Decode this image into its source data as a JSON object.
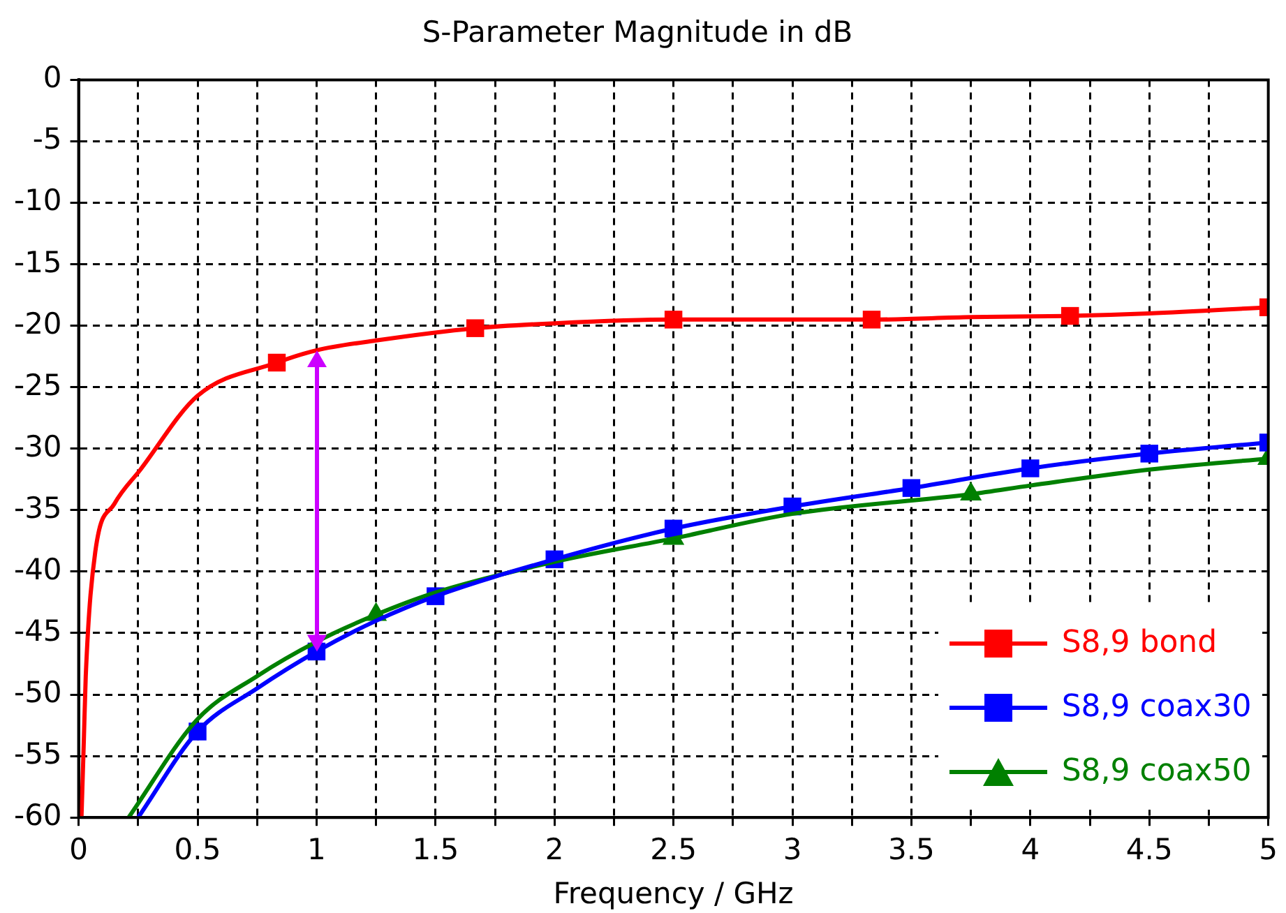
{
  "chart_data": {
    "type": "line",
    "title": "S-Parameter Magnitude in dB",
    "xlabel": "Frequency / GHz",
    "xlim": [
      0,
      5
    ],
    "ylim": [
      -60,
      0
    ],
    "xticks": [
      0,
      {
        "value": 0.25,
        "label": null
      },
      0.5,
      {
        "value": 0.75,
        "label": null
      },
      1,
      {
        "value": 1.25,
        "label": null
      },
      1.5,
      {
        "value": 1.75,
        "label": null
      },
      2,
      {
        "value": 2.25,
        "label": null
      },
      2.5,
      {
        "value": 2.75,
        "label": null
      },
      3,
      {
        "value": 3.25,
        "label": null
      },
      3.5,
      {
        "value": 3.75,
        "label": null
      },
      4,
      {
        "value": 4.25,
        "label": null
      },
      4.5,
      {
        "value": 4.75,
        "label": null
      },
      5
    ],
    "yticks": [
      -60,
      -55,
      -50,
      -45,
      -40,
      -35,
      -30,
      -25,
      -20,
      -15,
      -10,
      -5,
      0
    ],
    "grid": true,
    "legend": "bottom right",
    "line_style": "solid",
    "series": [
      {
        "type": "line",
        "color": "#ff0000",
        "marker": "none",
        "x": [
          0.012,
          0.022,
          0.03,
          0.07,
          0.15,
          0.26,
          0.5,
          0.833,
          1,
          1.25,
          1.667,
          2,
          2.5,
          3,
          3.333,
          3.75,
          4.167,
          4.5,
          5
        ],
        "values": [
          -60,
          -53.7,
          -48.5,
          -38.4,
          -34.5,
          -31.7,
          -25.7,
          -23,
          -22,
          -21.2,
          -20.2,
          -19.8,
          -19.5,
          -19.5,
          -19.5,
          -19.3,
          -19.2,
          -19,
          -18.5
        ]
      },
      {
        "type": "line",
        "color": "#0000ff",
        "marker": "none",
        "x": [
          0.25,
          0.5,
          0.75,
          1,
          1.25,
          1.5,
          2,
          2.5,
          3,
          3.5,
          4,
          4.5,
          5
        ],
        "values": [
          -60,
          -53,
          -49.5,
          -46.5,
          -44,
          -42,
          -39,
          -36.5,
          -34.7,
          -33.2,
          -31.6,
          -30.4,
          -29.5
        ]
      },
      {
        "type": "line",
        "color": "#008000",
        "marker": "none",
        "x": [
          0.21,
          0.5,
          0.75,
          1,
          1.25,
          1.5,
          2,
          2.5,
          3,
          3.75,
          4,
          4.5,
          5
        ],
        "values": [
          -60,
          -52,
          -48.5,
          -45.7,
          -43.5,
          -41.7,
          -39.2,
          -37.3,
          -35.3,
          -33.7,
          -33,
          -31.7,
          -30.8
        ]
      },
      {
        "type": "scatter",
        "name": "S8,9 bond",
        "color": "#ff0000",
        "marker": "square",
        "x": [
          0.833,
          1.667,
          2.5,
          3.333,
          4.167,
          5
        ],
        "values": [
          -23,
          -20.2,
          -19.5,
          -19.5,
          -19.2,
          -18.5
        ]
      },
      {
        "type": "scatter",
        "name": "S8,9 coax30",
        "color": "#0000ff",
        "marker": "square",
        "x": [
          0.5,
          1,
          1.5,
          2,
          2.5,
          3,
          3.5,
          4,
          4.5,
          5
        ],
        "values": [
          -53,
          -46.5,
          -42,
          -39,
          -36.5,
          -34.7,
          -33.2,
          -31.6,
          -30.4,
          -29.5
        ]
      },
      {
        "type": "scatter",
        "name": "S8,9 coax50",
        "color": "#008000",
        "marker": "triangle",
        "x": [
          1.25,
          2.5,
          3.75,
          5
        ],
        "values": [
          -43.5,
          -37.3,
          -33.7,
          -30.8
        ]
      }
    ]
  }
}
